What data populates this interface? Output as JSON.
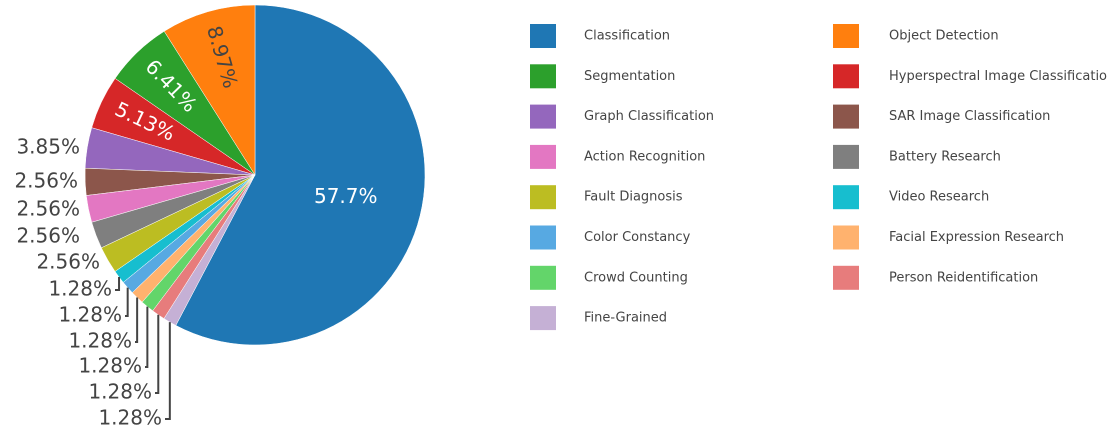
{
  "chart_data": {
    "type": "pie",
    "categories": [
      "Classification",
      "Object Detection",
      "Segmentation",
      "Hyperspectral Image Classification",
      "Graph Classification",
      "SAR Image Classification",
      "Action Recognition",
      "Battery Research",
      "Fault Diagnosis",
      "Video Research",
      "Color Constancy",
      "Facial Expression Research",
      "Crowd Counting",
      "Person Reidentification",
      "Fine-Grained"
    ],
    "values": [
      57.7,
      8.97,
      6.41,
      5.13,
      3.85,
      2.56,
      2.56,
      2.56,
      2.56,
      1.28,
      1.28,
      1.28,
      1.28,
      1.28,
      1.28
    ],
    "value_labels": [
      "57.7%",
      "8.97%",
      "6.41%",
      "5.13%",
      "3.85%",
      "2.56%",
      "2.56%",
      "2.56%",
      "2.56%",
      "1.28%",
      "1.28%",
      "1.28%",
      "1.28%",
      "1.28%",
      "1.28%"
    ],
    "colors": [
      "#1f77b4",
      "#ff7f0e",
      "#2ca02c",
      "#d62728",
      "#9467bd",
      "#8c564b",
      "#e377c2",
      "#7f7f7f",
      "#bcbd22",
      "#17becf",
      "#57a9e2",
      "#ffb26e",
      "#63d56a",
      "#e77c7c",
      "#c5b0d5"
    ]
  }
}
